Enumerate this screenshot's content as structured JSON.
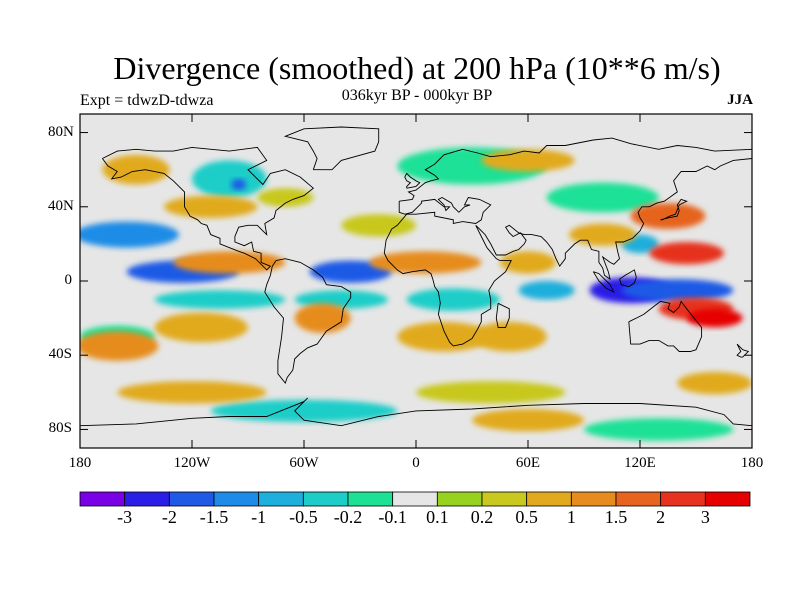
{
  "title": "Divergence (smoothed) at 200 hPa (10**6 m/s)",
  "subtitle": "036kyr BP - 000kyr BP",
  "experiment": "Expt = tdwzD-tdwza",
  "season": "JJA",
  "map": {
    "lat_labels": [
      "80N",
      "40N",
      "0",
      "40S",
      "80S"
    ],
    "lat_values": [
      80,
      40,
      0,
      -40,
      -80
    ],
    "lon_labels": [
      "180",
      "120W",
      "60W",
      "0",
      "60E",
      "120E",
      "180"
    ],
    "lon_values": [
      -180,
      -120,
      -60,
      0,
      60,
      120,
      180
    ],
    "lat_range": [
      -90,
      90
    ],
    "lon_range": [
      -180,
      180
    ],
    "background": "#e6e6e6"
  },
  "colorbar": {
    "labels": [
      "-3",
      "-2",
      "-1.5",
      "-1",
      "-0.5",
      "-0.2",
      "-0.1",
      "0.1",
      "0.2",
      "0.5",
      "1",
      "1.5",
      "2",
      "3"
    ],
    "colors": [
      "#7a00e6",
      "#2b1ee6",
      "#1e5ae6",
      "#1e8ce6",
      "#1eafdc",
      "#1ecdc8",
      "#1ee196",
      "#e6e6e6",
      "#96d21e",
      "#c8c81e",
      "#e1aa1e",
      "#e68c1e",
      "#e6641e",
      "#e6321e",
      "#e60000"
    ]
  },
  "features": [
    {
      "lon": -155,
      "lat": 25,
      "rx": 28,
      "ry": 7,
      "value": -1.5
    },
    {
      "lon": -125,
      "lat": 5,
      "rx": 30,
      "ry": 6,
      "value": -2
    },
    {
      "lon": -105,
      "lat": -10,
      "rx": 35,
      "ry": 5,
      "value": -0.5
    },
    {
      "lon": -35,
      "lat": 5,
      "rx": 22,
      "ry": 6,
      "value": -2
    },
    {
      "lon": -40,
      "lat": -10,
      "rx": 25,
      "ry": 5,
      "value": -0.5
    },
    {
      "lon": 20,
      "lat": -10,
      "rx": 25,
      "ry": 6,
      "value": -0.5
    },
    {
      "lon": 70,
      "lat": -5,
      "rx": 15,
      "ry": 5,
      "value": -1
    },
    {
      "lon": 115,
      "lat": -5,
      "rx": 22,
      "ry": 7,
      "value": -3
    },
    {
      "lon": 140,
      "lat": -5,
      "rx": 30,
      "ry": 6,
      "value": -2
    },
    {
      "lon": 120,
      "lat": 20,
      "rx": 10,
      "ry": 5,
      "value": -1
    },
    {
      "lon": -160,
      "lat": -30,
      "rx": 20,
      "ry": 6,
      "value": -0.2
    },
    {
      "lon": -100,
      "lat": 55,
      "rx": 20,
      "ry": 10,
      "value": -0.5
    },
    {
      "lon": -95,
      "lat": 52,
      "rx": 4,
      "ry": 3,
      "value": -2
    },
    {
      "lon": 30,
      "lat": 62,
      "rx": 40,
      "ry": 10,
      "value": -0.2
    },
    {
      "lon": 100,
      "lat": 45,
      "rx": 30,
      "ry": 8,
      "value": -0.2
    },
    {
      "lon": -60,
      "lat": -70,
      "rx": 50,
      "ry": 6,
      "value": -0.5
    },
    {
      "lon": 130,
      "lat": -80,
      "rx": 40,
      "ry": 6,
      "value": -0.2
    },
    {
      "lon": -160,
      "lat": -35,
      "rx": 22,
      "ry": 8,
      "value": 1
    },
    {
      "lon": -100,
      "lat": 10,
      "rx": 30,
      "ry": 6,
      "value": 1
    },
    {
      "lon": -115,
      "lat": -25,
      "rx": 25,
      "ry": 8,
      "value": 0.5
    },
    {
      "lon": -50,
      "lat": -20,
      "rx": 15,
      "ry": 8,
      "value": 1
    },
    {
      "lon": 5,
      "lat": 10,
      "rx": 30,
      "ry": 6,
      "value": 1
    },
    {
      "lon": 15,
      "lat": -30,
      "rx": 25,
      "ry": 8,
      "value": 0.5
    },
    {
      "lon": 50,
      "lat": -30,
      "rx": 20,
      "ry": 8,
      "value": 0.5
    },
    {
      "lon": 60,
      "lat": 10,
      "rx": 15,
      "ry": 6,
      "value": 0.5
    },
    {
      "lon": 145,
      "lat": 15,
      "rx": 20,
      "ry": 6,
      "value": 2
    },
    {
      "lon": 150,
      "lat": -15,
      "rx": 20,
      "ry": 6,
      "value": 2
    },
    {
      "lon": 160,
      "lat": -20,
      "rx": 15,
      "ry": 5,
      "value": 3
    },
    {
      "lon": 135,
      "lat": 35,
      "rx": 20,
      "ry": 7,
      "value": 1.5
    },
    {
      "lon": 100,
      "lat": 25,
      "rx": 18,
      "ry": 6,
      "value": 0.5
    },
    {
      "lon": -110,
      "lat": 40,
      "rx": 25,
      "ry": 6,
      "value": 0.5
    },
    {
      "lon": -70,
      "lat": 45,
      "rx": 15,
      "ry": 5,
      "value": 0.2
    },
    {
      "lon": -20,
      "lat": 30,
      "rx": 20,
      "ry": 6,
      "value": 0.2
    },
    {
      "lon": -150,
      "lat": 60,
      "rx": 18,
      "ry": 8,
      "value": 0.5
    },
    {
      "lon": 60,
      "lat": 65,
      "rx": 25,
      "ry": 6,
      "value": 0.5
    },
    {
      "lon": -120,
      "lat": -60,
      "rx": 40,
      "ry": 6,
      "value": 0.5
    },
    {
      "lon": 40,
      "lat": -60,
      "rx": 40,
      "ry": 6,
      "value": 0.2
    },
    {
      "lon": 60,
      "lat": -75,
      "rx": 30,
      "ry": 6,
      "value": 0.5
    },
    {
      "lon": 160,
      "lat": -55,
      "rx": 20,
      "ry": 6,
      "value": 0.5
    }
  ],
  "coastlines": [
    [
      [
        -168,
        66
      ],
      [
        -160,
        70
      ],
      [
        -150,
        71
      ],
      [
        -140,
        70
      ],
      [
        -130,
        70
      ],
      [
        -120,
        72
      ],
      [
        -100,
        70
      ],
      [
        -85,
        72
      ],
      [
        -80,
        65
      ],
      [
        -90,
        60
      ],
      [
        -82,
        52
      ],
      [
        -78,
        58
      ],
      [
        -70,
        60
      ],
      [
        -62,
        56
      ],
      [
        -55,
        50
      ],
      [
        -60,
        46
      ],
      [
        -66,
        44
      ],
      [
        -70,
        42
      ],
      [
        -75,
        38
      ],
      [
        -76,
        34
      ],
      [
        -81,
        31
      ],
      [
        -80,
        25
      ],
      [
        -82,
        27
      ],
      [
        -85,
        30
      ],
      [
        -90,
        30
      ],
      [
        -95,
        29
      ],
      [
        -97,
        24
      ],
      [
        -97,
        21
      ],
      [
        -92,
        19
      ],
      [
        -88,
        21
      ],
      [
        -87,
        16
      ],
      [
        -83,
        15
      ],
      [
        -83,
        10
      ],
      [
        -78,
        8
      ],
      [
        -80,
        6
      ],
      [
        -86,
        12
      ],
      [
        -92,
        15
      ],
      [
        -95,
        16
      ],
      [
        -105,
        20
      ],
      [
        -105,
        23
      ],
      [
        -110,
        25
      ],
      [
        -112,
        30
      ],
      [
        -115,
        31
      ],
      [
        -117,
        33
      ],
      [
        -121,
        35
      ],
      [
        -124,
        40
      ],
      [
        -124,
        48
      ],
      [
        -130,
        54
      ],
      [
        -135,
        58
      ],
      [
        -145,
        60
      ],
      [
        -152,
        59
      ],
      [
        -158,
        56
      ],
      [
        -163,
        55
      ],
      [
        -160,
        59
      ],
      [
        -165,
        62
      ],
      [
        -168,
        66
      ]
    ],
    [
      [
        -75,
        11
      ],
      [
        -70,
        12
      ],
      [
        -62,
        10
      ],
      [
        -55,
        6
      ],
      [
        -50,
        2
      ],
      [
        -48,
        -2
      ],
      [
        -40,
        -3
      ],
      [
        -35,
        -6
      ],
      [
        -35,
        -9
      ],
      [
        -39,
        -15
      ],
      [
        -40,
        -22
      ],
      [
        -48,
        -27
      ],
      [
        -53,
        -34
      ],
      [
        -58,
        -36
      ],
      [
        -62,
        -39
      ],
      [
        -65,
        -42
      ],
      [
        -66,
        -48
      ],
      [
        -69,
        -52
      ],
      [
        -70,
        -55
      ],
      [
        -74,
        -50
      ],
      [
        -74,
        -43
      ],
      [
        -72,
        -30
      ],
      [
        -71,
        -20
      ],
      [
        -76,
        -14
      ],
      [
        -81,
        -6
      ],
      [
        -80,
        -2
      ],
      [
        -78,
        3
      ],
      [
        -77,
        8
      ],
      [
        -75,
        11
      ]
    ],
    [
      [
        -55,
        60
      ],
      [
        -45,
        60
      ],
      [
        -40,
        65
      ],
      [
        -22,
        70
      ],
      [
        -20,
        75
      ],
      [
        -20,
        82
      ],
      [
        -40,
        83
      ],
      [
        -60,
        82
      ],
      [
        -70,
        78
      ],
      [
        -58,
        75
      ],
      [
        -55,
        70
      ],
      [
        -53,
        66
      ],
      [
        -55,
        60
      ]
    ],
    [
      [
        -9,
        43
      ],
      [
        -9,
        37
      ],
      [
        -6,
        36
      ],
      [
        -2,
        37
      ],
      [
        3,
        42
      ],
      [
        3,
        43
      ],
      [
        10,
        44
      ],
      [
        15,
        40
      ],
      [
        18,
        40
      ],
      [
        16,
        38
      ],
      [
        15,
        41
      ],
      [
        12,
        44
      ],
      [
        14,
        45
      ],
      [
        19,
        42
      ],
      [
        20,
        40
      ],
      [
        23,
        37
      ],
      [
        26,
        40
      ],
      [
        29,
        41
      ],
      [
        26,
        41
      ],
      [
        28,
        45
      ],
      [
        34,
        44
      ],
      [
        40,
        41
      ],
      [
        36,
        37
      ],
      [
        35,
        33
      ],
      [
        32,
        31
      ],
      [
        25,
        32
      ],
      [
        20,
        31
      ],
      [
        20,
        33
      ],
      [
        10,
        35
      ],
      [
        10,
        37
      ],
      [
        0,
        36
      ],
      [
        -5,
        36
      ],
      [
        -10,
        30
      ],
      [
        -13,
        28
      ],
      [
        -16,
        22
      ],
      [
        -17,
        15
      ],
      [
        -15,
        11
      ],
      [
        -10,
        6
      ],
      [
        -7,
        4
      ],
      [
        -2,
        5
      ],
      [
        5,
        6
      ],
      [
        8,
        4
      ],
      [
        9,
        1
      ],
      [
        10,
        -3
      ],
      [
        12,
        -6
      ],
      [
        13,
        -12
      ],
      [
        12,
        -18
      ],
      [
        15,
        -27
      ],
      [
        18,
        -33
      ],
      [
        20,
        -35
      ],
      [
        25,
        -34
      ],
      [
        30,
        -31
      ],
      [
        33,
        -26
      ],
      [
        35,
        -22
      ],
      [
        35,
        -18
      ],
      [
        40,
        -15
      ],
      [
        40,
        -10
      ],
      [
        39,
        -5
      ],
      [
        42,
        0
      ],
      [
        48,
        5
      ],
      [
        51,
        11
      ],
      [
        45,
        11
      ],
      [
        43,
        12
      ],
      [
        38,
        18
      ],
      [
        35,
        24
      ],
      [
        32,
        30
      ],
      [
        34,
        28
      ],
      [
        37,
        25
      ],
      [
        40,
        20
      ],
      [
        43,
        14
      ],
      [
        48,
        14
      ],
      [
        52,
        16
      ],
      [
        55,
        17
      ],
      [
        58,
        20
      ],
      [
        59,
        22
      ],
      [
        56,
        26
      ],
      [
        52,
        24
      ],
      [
        50,
        26
      ],
      [
        48,
        29
      ],
      [
        50,
        30
      ],
      [
        55,
        26
      ],
      [
        58,
        25
      ],
      [
        62,
        25
      ],
      [
        67,
        24
      ],
      [
        70,
        21
      ],
      [
        73,
        17
      ],
      [
        75,
        12
      ],
      [
        77,
        8
      ],
      [
        80,
        12
      ],
      [
        80,
        15
      ],
      [
        85,
        20
      ],
      [
        88,
        22
      ],
      [
        92,
        22
      ],
      [
        94,
        17
      ],
      [
        98,
        16
      ],
      [
        98,
        10
      ],
      [
        100,
        7
      ],
      [
        101,
        3
      ],
      [
        104,
        1
      ],
      [
        103,
        5
      ],
      [
        100,
        13
      ],
      [
        104,
        10
      ],
      [
        106,
        9
      ],
      [
        109,
        12
      ],
      [
        108,
        16
      ],
      [
        107,
        21
      ],
      [
        111,
        21
      ],
      [
        116,
        23
      ],
      [
        120,
        27
      ],
      [
        122,
        31
      ],
      [
        120,
        34
      ],
      [
        119,
        37
      ],
      [
        121,
        40
      ],
      [
        125,
        40
      ],
      [
        129,
        42
      ],
      [
        133,
        43
      ],
      [
        140,
        48
      ],
      [
        138,
        54
      ],
      [
        142,
        59
      ],
      [
        150,
        59
      ],
      [
        156,
        62
      ],
      [
        160,
        60
      ],
      [
        163,
        62
      ],
      [
        170,
        65
      ],
      [
        180,
        66
      ],
      [
        180,
        71
      ],
      [
        160,
        70
      ],
      [
        150,
        72
      ],
      [
        140,
        73
      ],
      [
        130,
        71
      ],
      [
        115,
        74
      ],
      [
        105,
        77
      ],
      [
        95,
        76
      ],
      [
        80,
        73
      ],
      [
        70,
        73
      ],
      [
        66,
        69
      ],
      [
        58,
        70
      ],
      [
        50,
        68
      ],
      [
        40,
        67
      ],
      [
        33,
        69
      ],
      [
        25,
        71
      ],
      [
        15,
        68
      ],
      [
        10,
        63
      ],
      [
        5,
        60
      ],
      [
        10,
        57
      ],
      [
        12,
        55
      ],
      [
        8,
        54
      ],
      [
        5,
        53
      ],
      [
        0,
        49
      ],
      [
        -4,
        48
      ],
      [
        -1,
        46
      ],
      [
        -2,
        44
      ],
      [
        -9,
        43
      ]
    ],
    [
      [
        -5,
        50
      ],
      [
        0,
        51
      ],
      [
        2,
        53
      ],
      [
        0,
        54
      ],
      [
        -3,
        56
      ],
      [
        -5,
        58
      ],
      [
        -6,
        56
      ],
      [
        -5,
        54
      ],
      [
        -3,
        53
      ],
      [
        -5,
        51
      ],
      [
        -5,
        50
      ]
    ],
    [
      [
        114,
        -22
      ],
      [
        115,
        -34
      ],
      [
        120,
        -34
      ],
      [
        125,
        -32
      ],
      [
        130,
        -32
      ],
      [
        135,
        -35
      ],
      [
        138,
        -35
      ],
      [
        141,
        -38
      ],
      [
        147,
        -38
      ],
      [
        150,
        -37
      ],
      [
        153,
        -30
      ],
      [
        153,
        -25
      ],
      [
        149,
        -20
      ],
      [
        145,
        -15
      ],
      [
        142,
        -11
      ],
      [
        141,
        -14
      ],
      [
        138,
        -17
      ],
      [
        135,
        -15
      ],
      [
        136,
        -12
      ],
      [
        131,
        -11
      ],
      [
        127,
        -14
      ],
      [
        122,
        -18
      ],
      [
        118,
        -20
      ],
      [
        114,
        -22
      ]
    ],
    [
      [
        95,
        5
      ],
      [
        98,
        4
      ],
      [
        104,
        -2
      ],
      [
        106,
        -6
      ],
      [
        102,
        -4
      ],
      [
        98,
        0
      ],
      [
        95,
        5
      ]
    ],
    [
      [
        109,
        1
      ],
      [
        110,
        -2
      ],
      [
        114,
        -3
      ],
      [
        117,
        -1
      ],
      [
        118,
        2
      ],
      [
        117,
        6
      ],
      [
        112,
        3
      ],
      [
        109,
        1
      ]
    ],
    [
      [
        131,
        33
      ],
      [
        135,
        34
      ],
      [
        140,
        35
      ],
      [
        141,
        38
      ],
      [
        140,
        41
      ],
      [
        142,
        44
      ],
      [
        145,
        43
      ],
      [
        141,
        41
      ],
      [
        139,
        36
      ],
      [
        136,
        35
      ],
      [
        132,
        33
      ],
      [
        131,
        33
      ]
    ],
    [
      [
        -180,
        -78
      ],
      [
        -150,
        -77
      ],
      [
        -120,
        -74
      ],
      [
        -100,
        -73
      ],
      [
        -80,
        -73
      ],
      [
        -60,
        -65
      ],
      [
        -58,
        -63
      ],
      [
        -65,
        -70
      ],
      [
        -60,
        -75
      ],
      [
        -40,
        -78
      ],
      [
        -20,
        -73
      ],
      [
        0,
        -70
      ],
      [
        30,
        -69
      ],
      [
        60,
        -67
      ],
      [
        90,
        -66
      ],
      [
        120,
        -66
      ],
      [
        150,
        -68
      ],
      [
        165,
        -72
      ],
      [
        170,
        -77
      ],
      [
        180,
        -78
      ]
    ],
    [
      [
        172,
        -34
      ],
      [
        175,
        -37
      ],
      [
        178,
        -38
      ],
      [
        175,
        -41
      ],
      [
        174,
        -41
      ],
      [
        172,
        -40
      ],
      [
        174,
        -38
      ],
      [
        172,
        -34
      ]
    ],
    [
      [
        44,
        -12
      ],
      [
        50,
        -15
      ],
      [
        50,
        -20
      ],
      [
        48,
        -25
      ],
      [
        44,
        -25
      ],
      [
        43,
        -20
      ],
      [
        44,
        -12
      ]
    ]
  ]
}
